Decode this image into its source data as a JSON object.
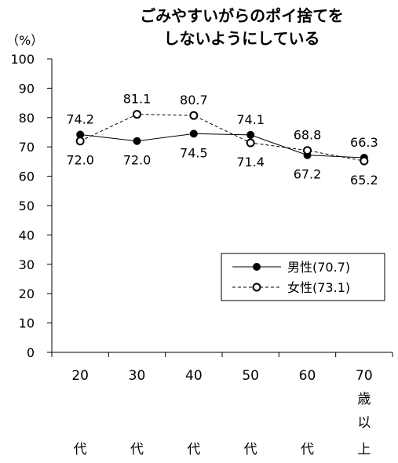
{
  "chart_data": {
    "type": "line",
    "title": [
      "ごみやすいがらのポイ捨てを",
      "しないようにしている"
    ],
    "ylabel": "（%）",
    "ylim": [
      0,
      100
    ],
    "yticks": [
      "0",
      "10",
      "20",
      "30",
      "40",
      "50",
      "60",
      "70",
      "80",
      "90",
      "100"
    ],
    "categories": [
      [
        "20",
        "代"
      ],
      [
        "30",
        "代"
      ],
      [
        "40",
        "代"
      ],
      [
        "50",
        "代"
      ],
      [
        "60",
        "代"
      ],
      [
        "70",
        "歳",
        "以",
        "上"
      ]
    ],
    "grid": false,
    "legend_position": "lower-right",
    "series": [
      {
        "name": "男性(70.7)",
        "marker": "filled-circle",
        "line_style": "solid",
        "values": [
          74.2,
          72.0,
          74.5,
          74.1,
          67.2,
          66.3
        ],
        "labels": [
          "74.2",
          "72.0",
          "74.5",
          "74.1",
          "67.2",
          "66.3"
        ]
      },
      {
        "name": "女性(73.1)",
        "marker": "open-circle",
        "line_style": "dashed",
        "values": [
          72.0,
          81.1,
          80.7,
          71.4,
          68.8,
          65.2
        ],
        "labels": [
          "72.0",
          "81.1",
          "80.7",
          "71.4",
          "68.8",
          "65.2"
        ]
      }
    ]
  }
}
